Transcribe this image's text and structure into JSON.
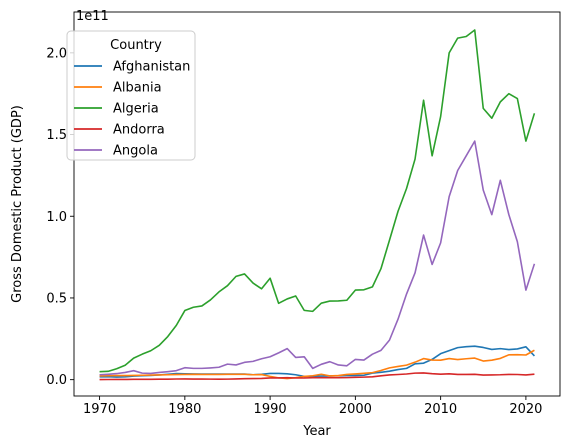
{
  "chart_data": {
    "type": "line",
    "xlabel": "Year",
    "ylabel": "Gross Domestic Product (GDP)",
    "y_offset_label": "1e11",
    "y_scale": 100000000000,
    "xlim": [
      1967,
      2024
    ],
    "ylim": [
      -10000000000.0,
      225000000000.0
    ],
    "x_ticks": [
      1970,
      1980,
      1990,
      2000,
      2010,
      2020
    ],
    "y_ticks": [
      0,
      50000000000.0,
      100000000000.0,
      150000000000.0,
      200000000000.0
    ],
    "y_tick_labels": [
      "0.0",
      "0.5",
      "1.0",
      "1.5",
      "2.0"
    ],
    "grid": false,
    "legend": {
      "title": "Country",
      "placement": "top-left"
    },
    "x": [
      1970,
      1971,
      1972,
      1973,
      1974,
      1975,
      1976,
      1977,
      1978,
      1979,
      1980,
      1981,
      1982,
      1983,
      1984,
      1985,
      1986,
      1987,
      1988,
      1989,
      1990,
      1991,
      1992,
      1993,
      1994,
      1995,
      1996,
      1997,
      1998,
      1999,
      2000,
      2001,
      2002,
      2003,
      2004,
      2005,
      2006,
      2007,
      2008,
      2009,
      2010,
      2011,
      2012,
      2013,
      2014,
      2015,
      2016,
      2017,
      2018,
      2019,
      2020,
      2021
    ],
    "series": [
      {
        "name": "Afghanistan",
        "color": "#1f77b4",
        "values": [
          1700000000.0,
          1800000000.0,
          1600000000.0,
          1700000000.0,
          2200000000.0,
          2400000000.0,
          2600000000.0,
          2900000000.0,
          3300000000.0,
          3700000000.0,
          3600000000.0,
          3500000000.0,
          3400000000.0,
          3400000000.0,
          3400000000.0,
          3400000000.0,
          3400000000.0,
          3400000000.0,
          3000000000.0,
          3300000000.0,
          3800000000.0,
          3800000000.0,
          3600000000.0,
          3000000000.0,
          2000000000.0,
          2100000000.0,
          2200000000.0,
          2300000000.0,
          2400000000.0,
          2500000000.0,
          2600000000.0,
          2700000000.0,
          4000000000.0,
          4500000000.0,
          5200000000.0,
          6200000000.0,
          6900000000.0,
          9700000000.0,
          10100000000.0,
          12400000000.0,
          15900000000.0,
          17800000000.0,
          19600000000.0,
          20200000000.0,
          20500000000.0,
          19700000000.0,
          18500000000.0,
          19000000000.0,
          18400000000.0,
          18800000000.0,
          20100000000.0,
          14500000000.0
        ]
      },
      {
        "name": "Albania",
        "color": "#ff7f0e",
        "values": [
          2300000000.0,
          2400000000.0,
          2500000000.0,
          2500000000.0,
          2600000000.0,
          2700000000.0,
          2800000000.0,
          2900000000.0,
          3000000000.0,
          3100000000.0,
          3200000000.0,
          3300000000.0,
          3200000000.0,
          3200000000.0,
          3200000000.0,
          3300000000.0,
          3300000000.0,
          3300000000.0,
          3000000000.0,
          3100000000.0,
          2000000000.0,
          1100000000.0,
          700000000.0,
          1200000000.0,
          2000000000.0,
          2400000000.0,
          3300000000.0,
          2300000000.0,
          2500000000.0,
          3200000000.0,
          3500000000.0,
          3900000000.0,
          4300000000.0,
          5600000000.0,
          7200000000.0,
          8100000000.0,
          8900000000.0,
          10700000000.0,
          12900000000.0,
          12000000000.0,
          11900000000.0,
          12900000000.0,
          12300000000.0,
          12800000000.0,
          13200000000.0,
          11400000000.0,
          11900000000.0,
          13000000000.0,
          15200000000.0,
          15300000000.0,
          15100000000.0,
          18000000000.0
        ]
      },
      {
        "name": "Algeria",
        "color": "#2ca02c",
        "values": [
          4900000000.0,
          5100000000.0,
          6700000000.0,
          8800000000.0,
          13200000000.0,
          15600000000.0,
          17700000000.0,
          21000000000.0,
          26400000000.0,
          33200000000.0,
          42300000000.0,
          44300000000.0,
          45100000000.0,
          48800000000.0,
          53700000000.0,
          57500000000.0,
          63200000000.0,
          64700000000.0,
          59100000000.0,
          55600000000.0,
          62100000000.0,
          46700000000.0,
          49400000000.0,
          51200000000.0,
          42400000000.0,
          41800000000.0,
          46800000000.0,
          48100000000.0,
          48200000000.0,
          48600000000.0,
          54800000000.0,
          55000000000.0,
          56800000000.0,
          67900000000.0,
          85300000000.0,
          103000000000.0,
          117000000000.0,
          135000000000.0,
          171000000000.0,
          137000000000.0,
          161000000000.0,
          200000000000.0,
          209000000000.0,
          210000000000.0,
          214000000000.0,
          166000000000.0,
          160000000000.0,
          170000000000.0,
          175000000000.0,
          172000000000.0,
          146000000000.0,
          163000000000.0
        ]
      },
      {
        "name": "Andorra",
        "color": "#d62728",
        "values": [
          80000000.0,
          90000000.0,
          110000000.0,
          140000000.0,
          190000000.0,
          220000000.0,
          230000000.0,
          260000000.0,
          320000000.0,
          410000000.0,
          450000000.0,
          390000000.0,
          360000000.0,
          330000000.0,
          310000000.0,
          330000000.0,
          450000000.0,
          580000000.0,
          690000000.0,
          720000000.0,
          1030000000.0,
          1030000000.0,
          1210000000.0,
          1010000000.0,
          1020000000.0,
          1180000000.0,
          1220000000.0,
          1180000000.0,
          1210000000.0,
          1240000000.0,
          1430000000.0,
          1550000000.0,
          1740000000.0,
          2360000000.0,
          2900000000.0,
          3160000000.0,
          3460000000.0,
          4000000000.0,
          4090000000.0,
          3660000000.0,
          3360000000.0,
          3550000000.0,
          3190000000.0,
          3190000000.0,
          3270000000.0,
          2790000000.0,
          2900000000.0,
          3000000000.0,
          3220000000.0,
          3160000000.0,
          2890000000.0,
          3330000000.0
        ]
      },
      {
        "name": "Angola",
        "color": "#9467bd",
        "values": [
          3000000000.0,
          3300000000.0,
          3700000000.0,
          4400000000.0,
          5500000000.0,
          4000000000.0,
          3800000000.0,
          4400000000.0,
          4900000000.0,
          5500000000.0,
          7300000000.0,
          6900000000.0,
          6900000000.0,
          7200000000.0,
          7600000000.0,
          9500000000.0,
          9000000000.0,
          10600000000.0,
          11200000000.0,
          12800000000.0,
          14000000000.0,
          16400000000.0,
          19000000000.0,
          13600000000.0,
          14000000000.0,
          6900000000.0,
          9400000000.0,
          11000000000.0,
          9000000000.0,
          8500000000.0,
          12400000000.0,
          12000000000.0,
          15600000000.0,
          17900000000.0,
          24200000000.0,
          37000000000.0,
          52400000000.0,
          65400000000.0,
          88500000000.0,
          70500000000.0,
          83700000000.0,
          112000000000.0,
          128000000000.0,
          137000000000.0,
          146000000000.0,
          116000000000.0,
          101000000000.0,
          122000000000.0,
          101000000000.0,
          84400000000.0,
          54800000000.0,
          70900000000.0
        ]
      }
    ]
  }
}
